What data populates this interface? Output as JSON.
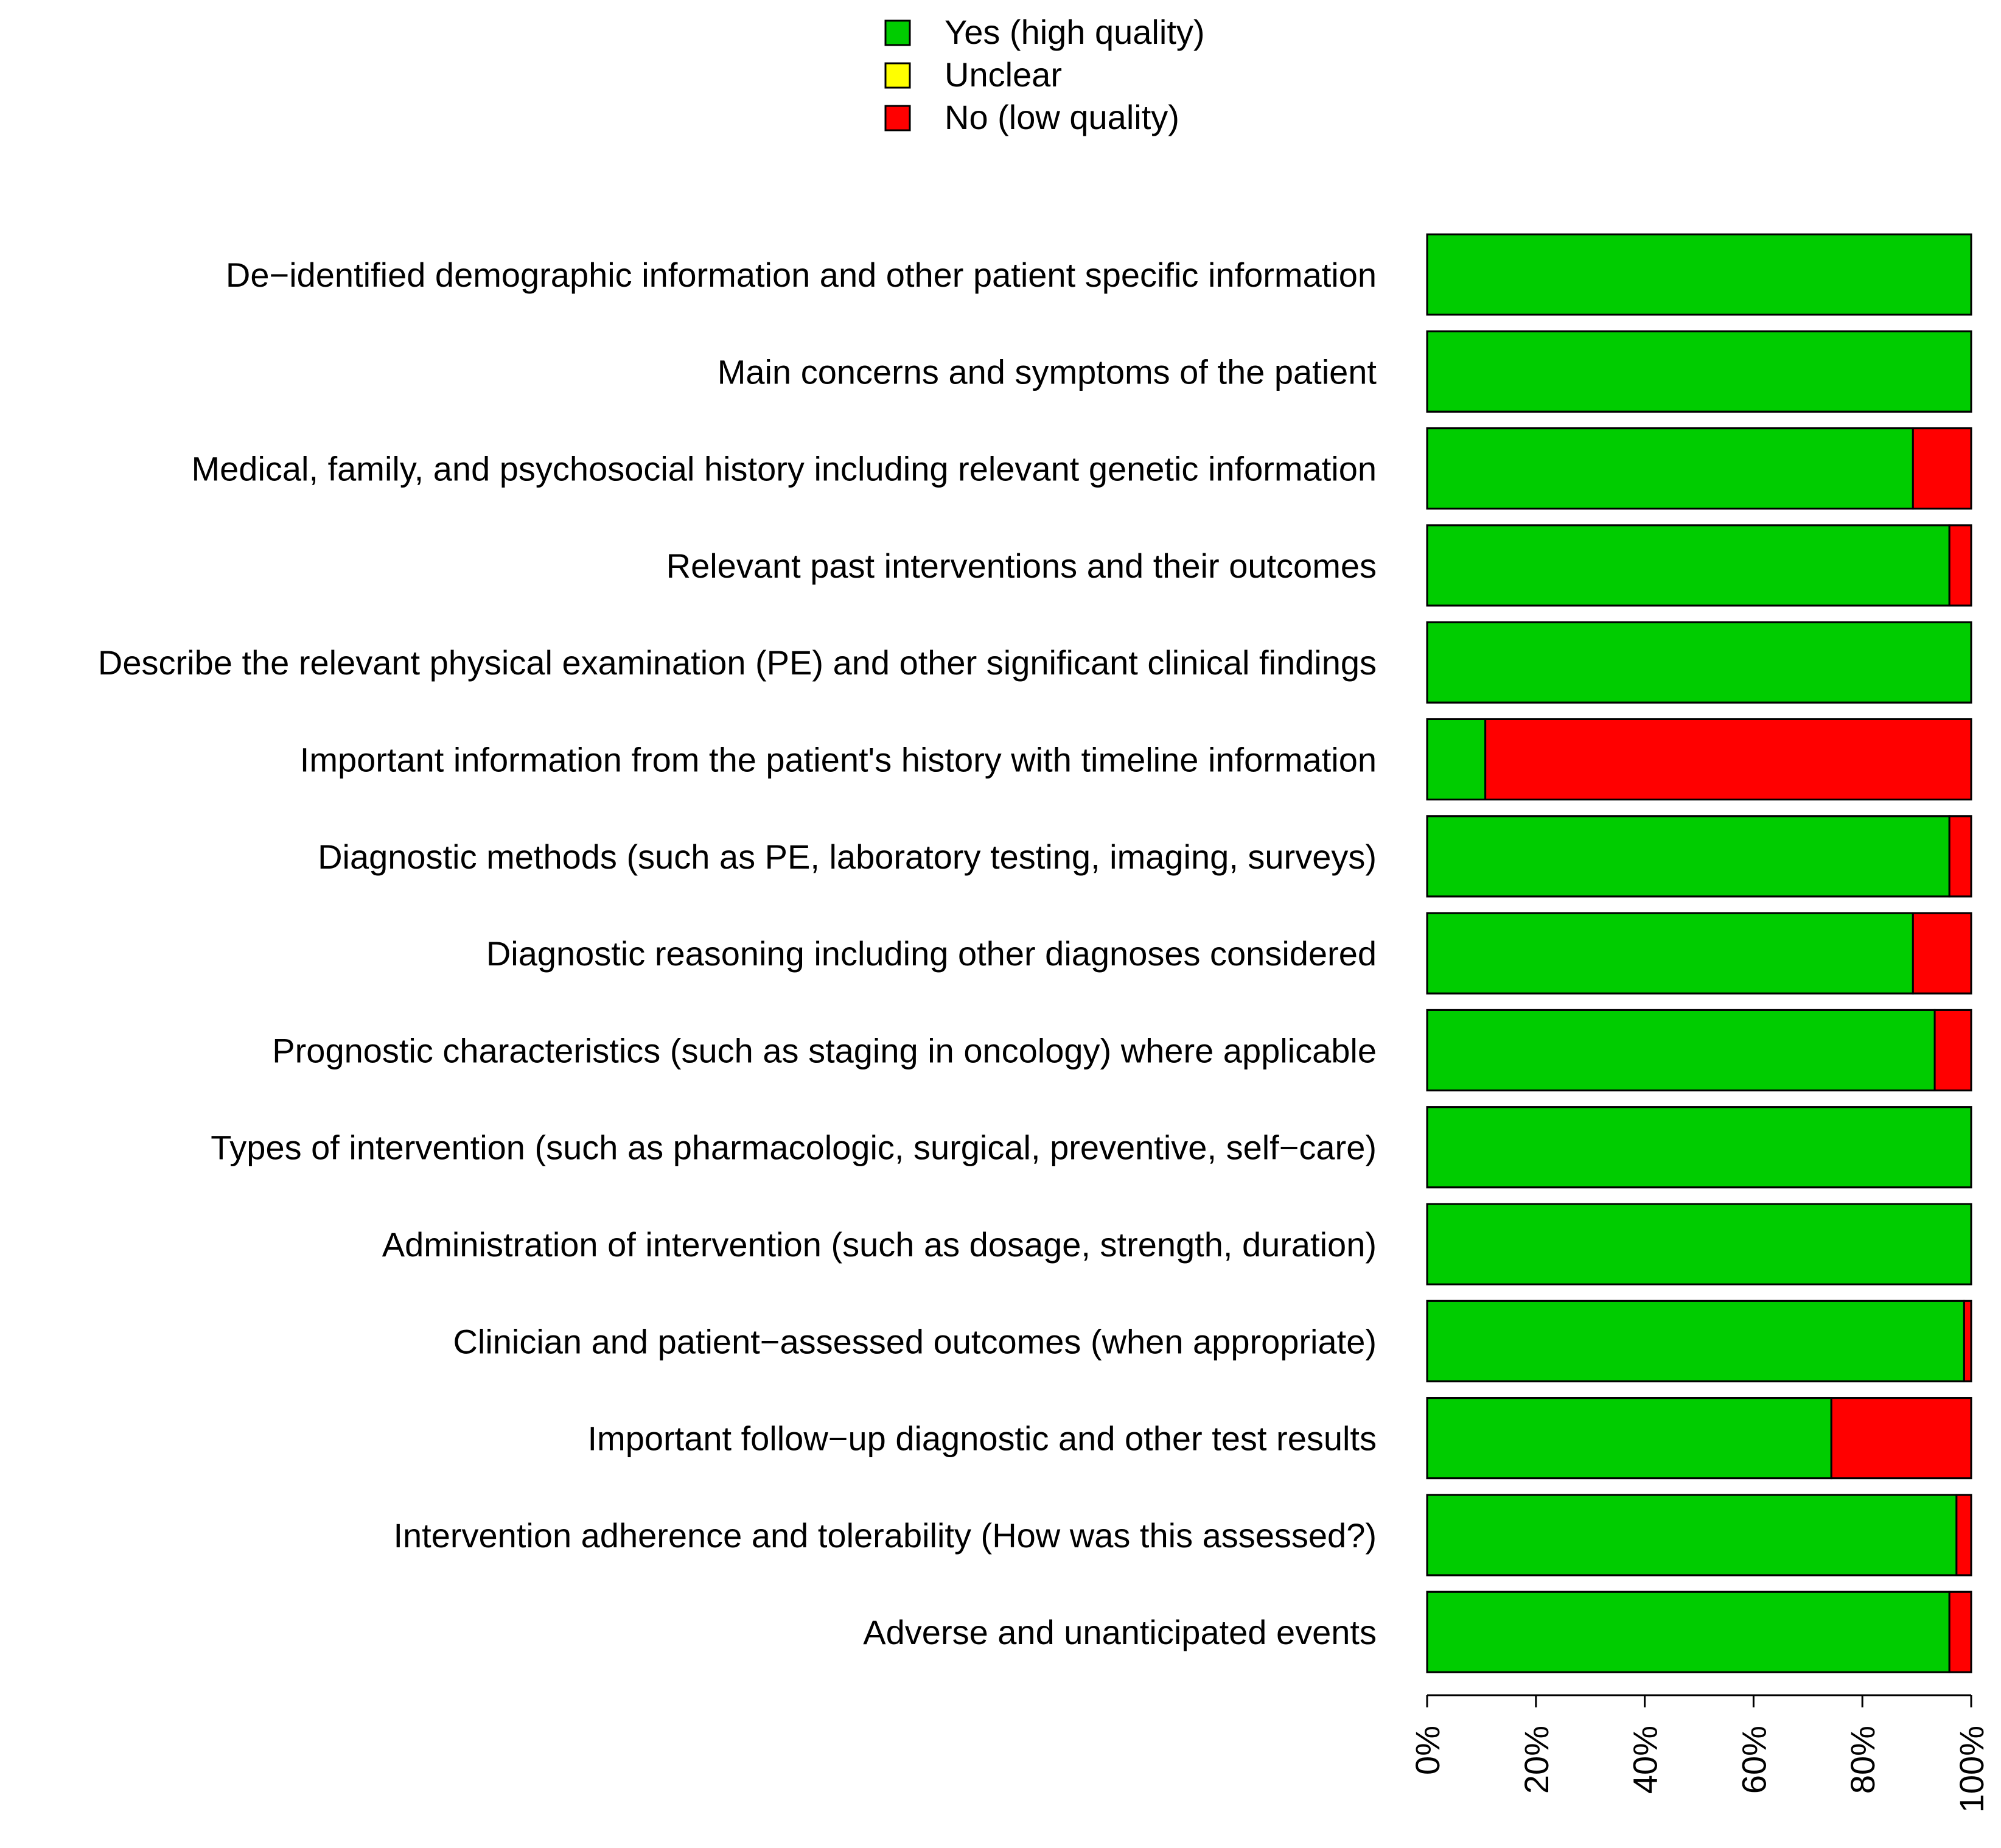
{
  "chart_data": {
    "type": "bar",
    "orientation": "horizontal",
    "stacked": true,
    "title": "",
    "xlabel": "",
    "ylabel": "",
    "xlim": [
      0,
      100
    ],
    "x_ticks": [
      "0%",
      "20%",
      "40%",
      "60%",
      "80%",
      "100%"
    ],
    "x_tick_values": [
      0,
      20,
      40,
      60,
      80,
      100
    ],
    "legend_placement": "top-center",
    "categories": [
      "De−identified demographic information and other patient specific information",
      "Main concerns and symptoms of the patient",
      "Medical, family, and psychosocial history including relevant genetic information",
      "Relevant past interventions and their outcomes",
      "Describe the relevant physical examination (PE) and other significant clinical findings",
      "Important information from the patient's history with timeline information",
      "Diagnostic methods (such as PE, laboratory testing, imaging, surveys)",
      "Diagnostic reasoning including other diagnoses considered",
      "Prognostic characteristics (such as staging in oncology) where applicable",
      "Types of intervention (such as pharmacologic, surgical, preventive, self−care)",
      "Administration of intervention (such as dosage, strength, duration)",
      "Clinician and patient−assessed outcomes (when appropriate)",
      "Important follow−up diagnostic and other test results",
      "Intervention adherence and tolerability (How was this assessed?)",
      "Adverse and unanticipated events"
    ],
    "series": [
      {
        "name": "Yes (high quality)",
        "color": "#00cc00",
        "values": [
          100,
          100,
          89.3,
          96,
          100,
          10.7,
          96,
          89.3,
          93.3,
          100,
          100,
          98.7,
          74.3,
          97.3,
          96
        ]
      },
      {
        "name": "Unclear",
        "color": "#ffff00",
        "values": [
          0,
          0,
          0,
          0,
          0,
          0,
          0,
          0,
          0,
          0,
          0,
          0,
          0,
          0,
          0
        ]
      },
      {
        "name": "No (low quality)",
        "color": "#ff0000",
        "values": [
          0,
          0,
          10.7,
          4,
          0,
          89.3,
          4,
          10.7,
          6.7,
          0,
          0,
          1.3,
          25.7,
          2.7,
          4
        ]
      }
    ]
  }
}
